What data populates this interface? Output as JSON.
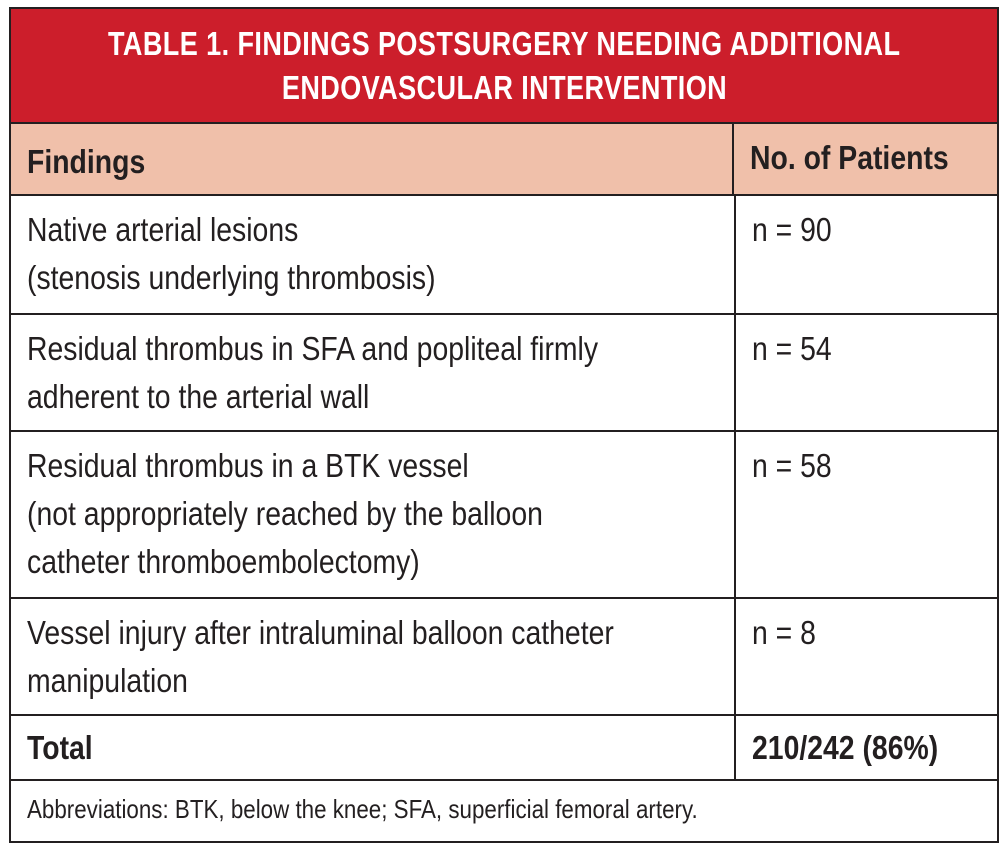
{
  "table": {
    "title_lines": [
      "TABLE 1.  FINDINGS POSTSURGERY NEEDING ADDITIONAL",
      "ENDOVASCULAR INTERVENTION"
    ],
    "headers": {
      "findings": "Findings",
      "patients": "No. of Patients"
    },
    "rows": [
      {
        "finding_lines": [
          "Native arterial lesions",
          "(stenosis underlying thrombosis)"
        ],
        "patients": "n = 90"
      },
      {
        "finding_lines": [
          "Residual thrombus in SFA and popliteal firmly",
          "adherent to the arterial wall"
        ],
        "patients": "n = 54"
      },
      {
        "finding_lines": [
          "Residual thrombus in a BTK vessel",
          "(not appropriately reached by the balloon",
          "catheter thromboembolectomy)"
        ],
        "patients": "n = 58"
      },
      {
        "finding_lines": [
          "Vessel injury after intraluminal balloon catheter",
          "manipulation"
        ],
        "patients": "n = 8"
      }
    ],
    "total": {
      "label": "Total",
      "value": "210/242 (86%)"
    },
    "footnote": "Abbreviations: BTK, below the knee; SFA, superficial femoral artery.",
    "colors": {
      "title_background": "#cc1e2b",
      "header_background": "#f0c0aa",
      "border": "#231f20"
    }
  }
}
